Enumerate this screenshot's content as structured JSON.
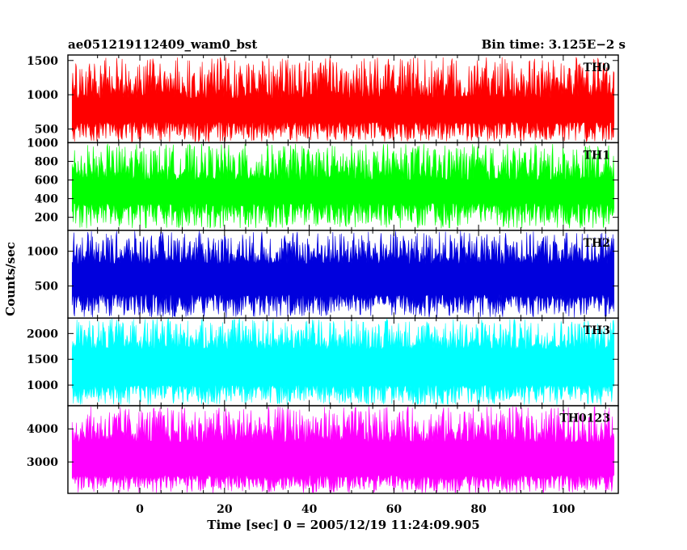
{
  "header": {
    "left_title": "ae051219112409_wam0_bst",
    "right_title": "Bin time: 3.125E−2 s"
  },
  "chart_data": {
    "type": "line",
    "title": "ae051219112409_wam0_bst",
    "subtitle": "Bin time: 3.125E−2 s",
    "xlabel": "Time [sec] 0 = 2005/12/19 11:24:09.905",
    "ylabel": "Counts/sec",
    "xlim": [
      -17,
      113
    ],
    "x_data_range": [
      -16,
      112
    ],
    "bin_time_s": 0.03125,
    "x_ticks": [
      0,
      20,
      40,
      60,
      80,
      100
    ],
    "x_tick_labels": [
      "0",
      "20",
      "40",
      "60",
      "80",
      "100"
    ],
    "grid": false,
    "legend": "none",
    "panels": [
      {
        "name": "TH0",
        "color": "#ff0000",
        "ylim": [
          300,
          1580
        ],
        "y_ticks": [
          500,
          1000,
          1500
        ],
        "y_tick_labels": [
          "500",
          "1000",
          "1500"
        ],
        "band_low": [
          310,
          600
        ],
        "band_high": [
          950,
          1550
        ]
      },
      {
        "name": "TH1",
        "color": "#00ff00",
        "ylim": [
          60,
          1000
        ],
        "y_ticks": [
          200,
          400,
          600,
          800,
          1000
        ],
        "y_tick_labels": [
          "200",
          "400",
          "600",
          "800",
          "1000"
        ],
        "band_low": [
          80,
          350
        ],
        "band_high": [
          600,
          990
        ]
      },
      {
        "name": "TH2",
        "color": "#0000dd",
        "ylim": [
          40,
          1300
        ],
        "y_ticks": [
          500,
          1000
        ],
        "y_tick_labels": [
          "500",
          "1000"
        ],
        "band_low": [
          50,
          380
        ],
        "band_high": [
          820,
          1290
        ]
      },
      {
        "name": "TH3",
        "color": "#00ffff",
        "ylim": [
          600,
          2300
        ],
        "y_ticks": [
          1000,
          1500,
          2000
        ],
        "y_tick_labels": [
          "1000",
          "1500",
          "2000"
        ],
        "band_low": [
          610,
          1000
        ],
        "band_high": [
          1700,
          2290
        ]
      },
      {
        "name": "TH0123",
        "color": "#ff00ff",
        "ylim": [
          2050,
          4700
        ],
        "y_ticks": [
          3000,
          4000
        ],
        "y_tick_labels": [
          "3000",
          "4000"
        ],
        "band_low": [
          2060,
          2600
        ],
        "band_high": [
          3600,
          4680
        ]
      }
    ]
  }
}
